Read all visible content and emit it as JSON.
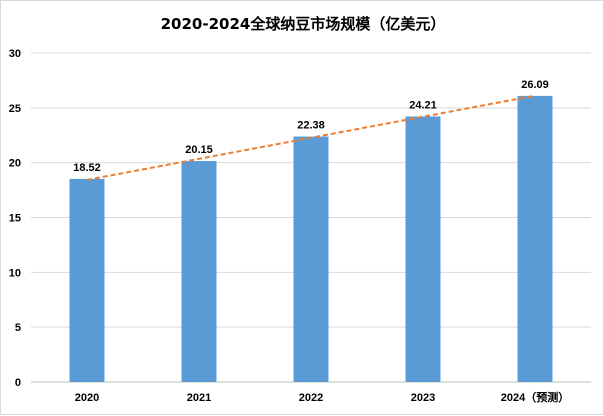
{
  "chart_data": {
    "type": "bar",
    "title": "2020-2024全球纳豆市场规模（亿美元）",
    "xlabel": "",
    "ylabel": "",
    "categories": [
      "2020",
      "2021",
      "2022",
      "2023",
      "2024（预测）"
    ],
    "values": [
      18.52,
      20.15,
      22.38,
      24.21,
      26.09
    ],
    "data_labels": [
      "18.52",
      "20.15",
      "22.38",
      "24.21",
      "26.09"
    ],
    "ylim": [
      0,
      30
    ],
    "yticks": [
      "0",
      "5",
      "10",
      "15",
      "20",
      "25",
      "30"
    ],
    "grid": true,
    "trendline": {
      "type": "linear",
      "style": "dashed"
    },
    "colors": {
      "bar": "#5b9bd5",
      "trendline": "#ed7d31",
      "grid": "#d9d9d9"
    }
  }
}
